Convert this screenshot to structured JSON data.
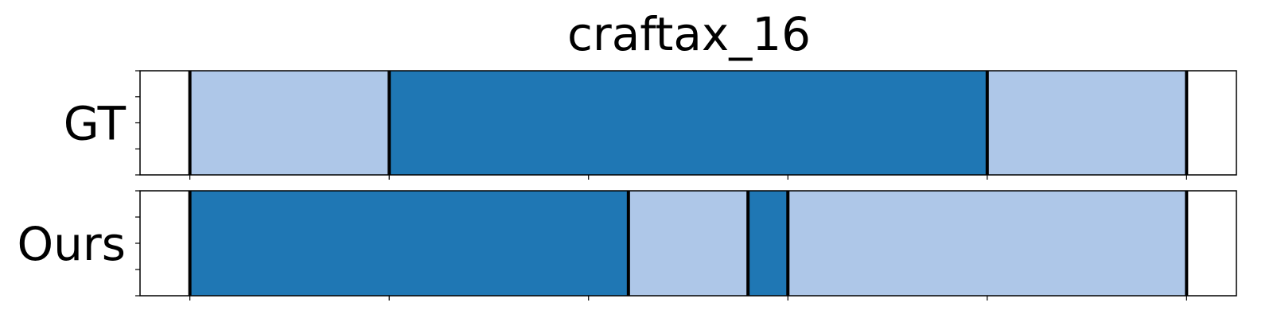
{
  "chart_data": {
    "type": "timeline_segments",
    "title": "craftax_16",
    "xlim": [
      -2.5,
      52.5
    ],
    "colors": {
      "light": "#aec7e8",
      "dark": "#1f77b4"
    },
    "boundary_color": "#000000",
    "x_ticks": [
      0,
      10,
      20,
      30,
      40,
      50
    ],
    "rows": [
      {
        "label": "GT",
        "segments": [
          {
            "start": 0,
            "end": 10,
            "class": "light"
          },
          {
            "start": 10,
            "end": 40,
            "class": "dark"
          },
          {
            "start": 40,
            "end": 50,
            "class": "light"
          }
        ]
      },
      {
        "label": "Ours",
        "segments": [
          {
            "start": 0,
            "end": 22,
            "class": "dark"
          },
          {
            "start": 22,
            "end": 28,
            "class": "light"
          },
          {
            "start": 28,
            "end": 30,
            "class": "dark"
          },
          {
            "start": 30,
            "end": 50,
            "class": "light"
          }
        ]
      }
    ]
  }
}
